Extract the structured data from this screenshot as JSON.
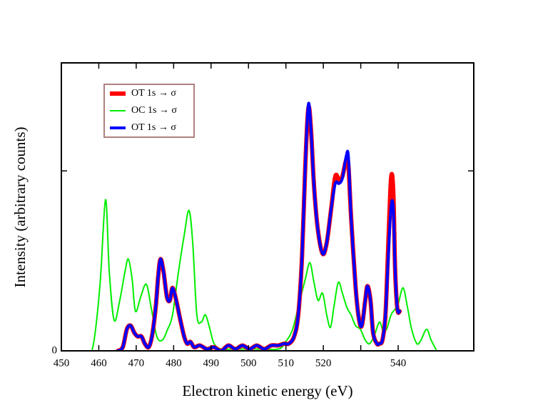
{
  "chart_data": {
    "type": "line",
    "xlabel": "Electron kinetic energy (eV)",
    "ylabel": "Intensity (arbitrary counts)",
    "xlim": [
      450,
      560.2
    ],
    "ylim": [
      0,
      1.6
    ],
    "xticks": [
      450,
      460,
      470,
      480,
      490,
      500,
      510,
      520,
      540
    ],
    "xticks_unlabeled": [
      530
    ],
    "yticks": [
      0
    ],
    "yticks_unlabeled": [
      1
    ],
    "legend": "upper left",
    "series": [
      {
        "name": "OT 1s → σ",
        "color": "#ff0000",
        "width": 6,
        "x": [
          465.1,
          466.4,
          467.5,
          468.5,
          469.5,
          470.4,
          471.4,
          472.3,
          473.3,
          474.2,
          475.2,
          475.9,
          476.5,
          477.3,
          478.2,
          479.0,
          479.7,
          480.7,
          481.7,
          482.8,
          483.6,
          484.5,
          485.5,
          487.0,
          488.9,
          490.8,
          492.7,
          494.6,
          496.5,
          498.4,
          500.3,
          502.2,
          504.2,
          506.1,
          508.0,
          509.5,
          510.8,
          512.2,
          513.3,
          514.3,
          515.2,
          516.0,
          516.7,
          517.5,
          518.5,
          519.8,
          520.9,
          522.1,
          523.2,
          524.2,
          525.1,
          526.1,
          526.7,
          527.4,
          528.6,
          529.5,
          530.3,
          531.2,
          531.8,
          532.6,
          533.3,
          534.3,
          535.0,
          535.8,
          536.6,
          537.3,
          538.1,
          538.7,
          539.2,
          539.8,
          540.4
        ],
        "values": [
          0,
          0.02,
          0.12,
          0.14,
          0.1,
          0.08,
          0.08,
          0.04,
          0.02,
          0.08,
          0.24,
          0.42,
          0.51,
          0.44,
          0.3,
          0.28,
          0.35,
          0.28,
          0.18,
          0.08,
          0.04,
          0.05,
          0.02,
          0.03,
          0.01,
          0.02,
          0,
          0.03,
          0.01,
          0.03,
          0.01,
          0.03,
          0.01,
          0.03,
          0.03,
          0.04,
          0.04,
          0.08,
          0.2,
          0.52,
          1.04,
          1.35,
          1.23,
          0.92,
          0.68,
          0.54,
          0.6,
          0.79,
          0.97,
          0.95,
          0.97,
          1.06,
          1.03,
          0.75,
          0.36,
          0.18,
          0.14,
          0.28,
          0.36,
          0.28,
          0.1,
          0.04,
          0.04,
          0.06,
          0.2,
          0.56,
          0.96,
          0.88,
          0.44,
          0.23,
          0.22
        ]
      },
      {
        "name": "OC 1s → σ",
        "color": "#00ee00",
        "width": 2,
        "x": [
          456.5,
          458.4,
          460.3,
          461.8,
          462.8,
          464.1,
          465.6,
          467.0,
          467.9,
          468.9,
          469.8,
          471.2,
          472.7,
          474.0,
          475.5,
          477.0,
          478.4,
          479.7,
          481.3,
          482.8,
          484.1,
          485.1,
          486.2,
          487.4,
          488.5,
          489.7,
          490.8,
          492.7,
          496.5,
          502.2,
          508.0,
          509.9,
          511.8,
          513.7,
          515.2,
          516.4,
          517.5,
          518.6,
          519.8,
          520.9,
          521.9,
          522.8,
          524.0,
          525.1,
          526.3,
          527.4,
          528.6,
          529.9,
          531.2,
          532.4,
          533.7,
          535.0,
          536.0,
          536.9,
          538.1,
          539.1,
          540.0,
          541.3,
          542.5,
          543.6,
          545.0,
          546.1,
          547.6,
          548.8,
          550.3
        ],
        "values": [
          0,
          0.02,
          0.36,
          0.84,
          0.44,
          0.17,
          0.28,
          0.44,
          0.51,
          0.4,
          0.22,
          0.3,
          0.37,
          0.24,
          0.08,
          0.06,
          0.12,
          0.2,
          0.44,
          0.64,
          0.78,
          0.6,
          0.2,
          0.16,
          0.2,
          0.12,
          0.04,
          0.01,
          0.01,
          0.01,
          0.01,
          0.05,
          0.12,
          0.28,
          0.4,
          0.49,
          0.38,
          0.28,
          0.32,
          0.2,
          0.13,
          0.24,
          0.38,
          0.32,
          0.24,
          0.2,
          0.14,
          0.12,
          0.06,
          0.04,
          0.09,
          0.16,
          0.11,
          0.12,
          0.2,
          0.23,
          0.26,
          0.35,
          0.24,
          0.12,
          0.04,
          0.06,
          0.12,
          0.06,
          0
        ]
      },
      {
        "name": "OT 1s → σ",
        "color": "#0000ff",
        "width": 4,
        "x": [
          465.1,
          466.4,
          467.5,
          468.5,
          469.5,
          470.4,
          471.4,
          472.3,
          473.3,
          474.2,
          475.2,
          475.9,
          476.5,
          477.3,
          478.2,
          479.0,
          479.7,
          480.7,
          481.7,
          482.8,
          483.6,
          484.5,
          485.5,
          487.0,
          488.9,
          490.8,
          492.7,
          494.6,
          496.5,
          498.4,
          500.3,
          502.2,
          504.2,
          506.1,
          508.0,
          509.5,
          510.8,
          512.2,
          513.3,
          514.3,
          515.2,
          516.0,
          516.7,
          517.5,
          518.5,
          519.8,
          520.9,
          522.1,
          523.2,
          524.2,
          525.1,
          526.1,
          526.7,
          527.4,
          528.6,
          529.5,
          530.3,
          531.2,
          531.8,
          532.6,
          533.3,
          534.3,
          535.0,
          535.8,
          536.6,
          537.3,
          538.1,
          538.7,
          539.2,
          539.8,
          540.4
        ],
        "values": [
          0,
          0.02,
          0.12,
          0.14,
          0.1,
          0.08,
          0.08,
          0.04,
          0.02,
          0.08,
          0.24,
          0.42,
          0.51,
          0.44,
          0.3,
          0.28,
          0.35,
          0.28,
          0.18,
          0.08,
          0.04,
          0.05,
          0.02,
          0.03,
          0.01,
          0.02,
          0,
          0.03,
          0.01,
          0.03,
          0.01,
          0.03,
          0.01,
          0.03,
          0.03,
          0.04,
          0.04,
          0.08,
          0.2,
          0.52,
          1.04,
          1.37,
          1.23,
          0.92,
          0.68,
          0.54,
          0.6,
          0.79,
          0.93,
          0.93,
          0.96,
          1.08,
          1.08,
          0.75,
          0.36,
          0.18,
          0.14,
          0.28,
          0.36,
          0.28,
          0.1,
          0.04,
          0.04,
          0.06,
          0.2,
          0.5,
          0.8,
          0.79,
          0.44,
          0.23,
          0.22
        ]
      }
    ]
  }
}
